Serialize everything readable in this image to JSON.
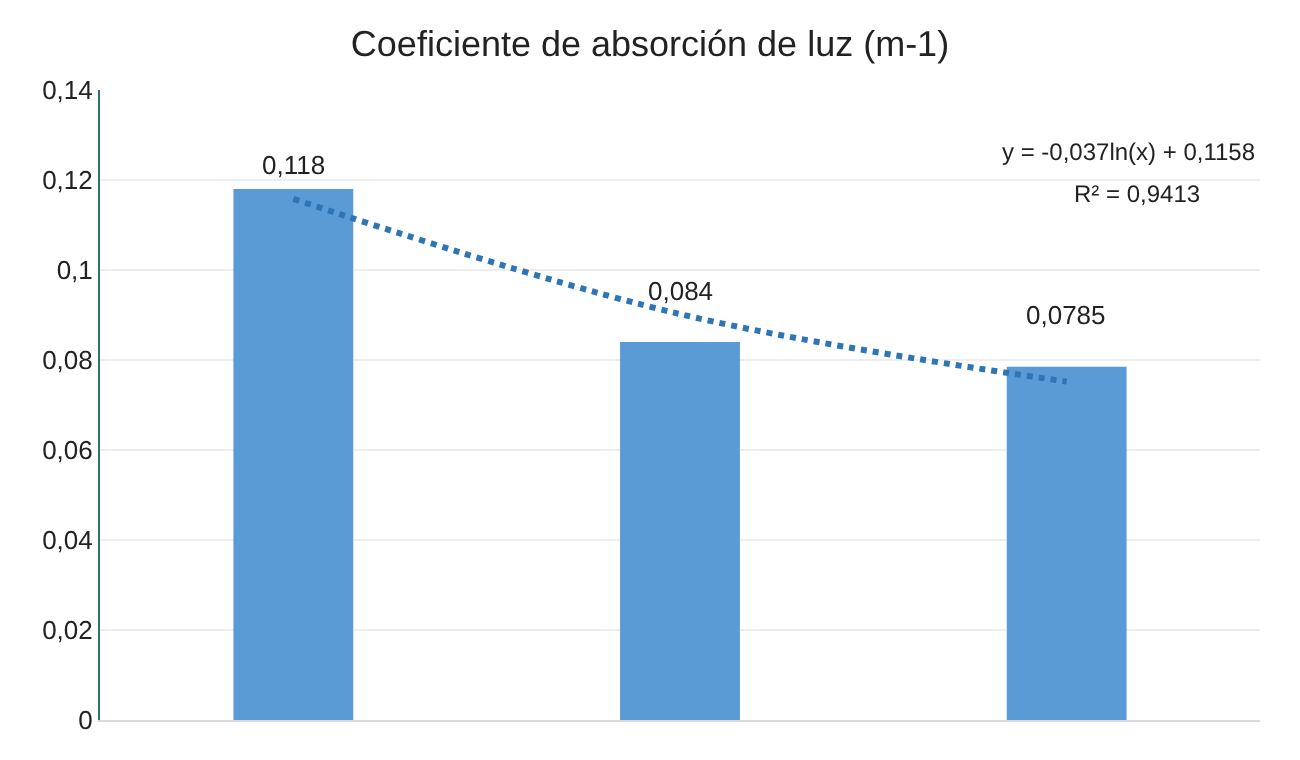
{
  "chart_data": {
    "type": "bar",
    "title": "Coeficiente de absorción de luz (m-1)",
    "categories": [
      null,
      null,
      null
    ],
    "series": [
      {
        "type": "line",
        "color": "#2e75b6",
        "line_style": "dotted",
        "marker": "none",
        "values": [
          0.1158,
          0.0902,
          0.0752
        ]
      },
      {
        "color": "#5b9bd5",
        "values": [
          0.118,
          0.084,
          0.0785
        ],
        "value_labels": [
          "0,118",
          "0,084",
          "0,0785"
        ]
      }
    ],
    "ylim": [
      0,
      0.14
    ],
    "yticks": [
      {
        "value": 0,
        "label": "0"
      },
      {
        "value": 0.02,
        "label": "0,02"
      },
      {
        "value": 0.04,
        "label": "0,04"
      },
      {
        "value": 0.06,
        "label": "0,06"
      },
      {
        "value": 0.08,
        "label": "0,08"
      },
      {
        "value": 0.1,
        "label": "0,1"
      },
      {
        "value": 0.12,
        "label": "0,12"
      },
      {
        "value": 0.14,
        "label": "0,14"
      }
    ],
    "grid": "y",
    "tick_labels": "y",
    "annotations": [
      "y = -0,037ln(x) + 0,1158",
      "R² = 0,9413"
    ]
  }
}
